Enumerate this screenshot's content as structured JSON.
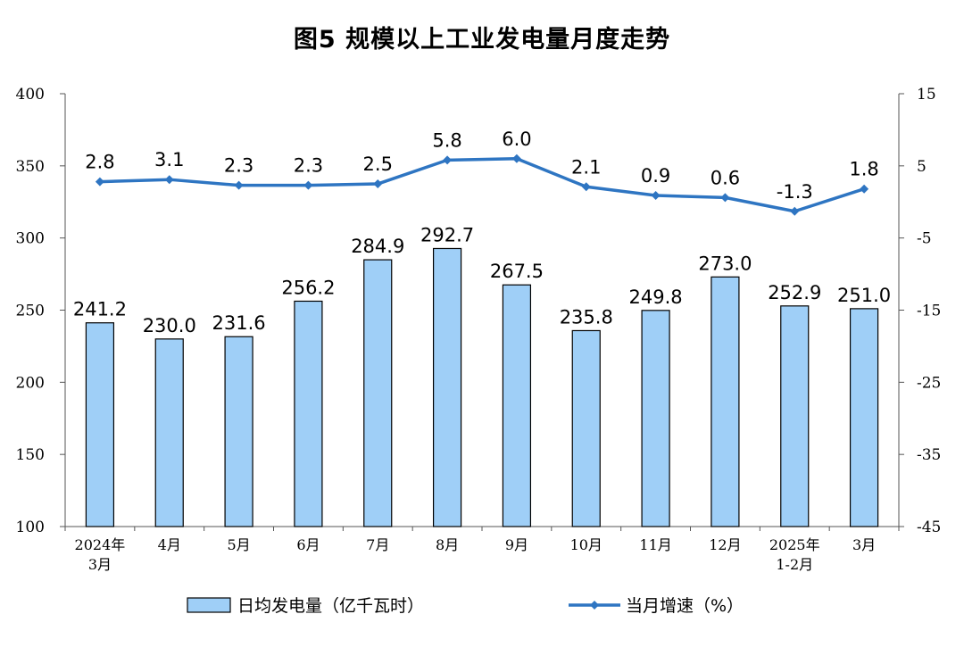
{
  "chart_data": {
    "type": "bar",
    "title": "图5  规模以上工业发电量月度走势",
    "categories": [
      [
        "2024年",
        "3月"
      ],
      [
        "4月"
      ],
      [
        "5月"
      ],
      [
        "6月"
      ],
      [
        "7月"
      ],
      [
        "8月"
      ],
      [
        "9月"
      ],
      [
        "10月"
      ],
      [
        "11月"
      ],
      [
        "12月"
      ],
      [
        "2025年",
        "1-2月"
      ],
      [
        "3月"
      ]
    ],
    "series": [
      {
        "name": "日均发电量（亿千瓦时）",
        "kind": "bar",
        "axis": "left",
        "color": "#9fcff7",
        "values": [
          241.2,
          230.0,
          231.6,
          256.2,
          284.9,
          292.7,
          267.5,
          235.8,
          249.8,
          273.0,
          252.9,
          251.0
        ],
        "labels": [
          "241.2",
          "230.0",
          "231.6",
          "256.2",
          "284.9",
          "292.7",
          "267.5",
          "235.8",
          "249.8",
          "273.0",
          "252.9",
          "251.0"
        ]
      },
      {
        "name": "当月增速（%）",
        "kind": "line",
        "axis": "right",
        "color": "#2e75c2",
        "values": [
          2.8,
          3.1,
          2.3,
          2.3,
          2.5,
          5.8,
          6.0,
          2.1,
          0.9,
          0.6,
          -1.3,
          1.8
        ],
        "labels": [
          "2.8",
          "3.1",
          "2.3",
          "2.3",
          "2.5",
          "5.8",
          "6.0",
          "2.1",
          "0.9",
          "0.6",
          "-1.3",
          "1.8"
        ]
      }
    ],
    "y_left": {
      "ylim": [
        100,
        400
      ],
      "ticks": [
        "100",
        "150",
        "200",
        "250",
        "300",
        "350",
        "400"
      ]
    },
    "y_right": {
      "ylim": [
        -45,
        15
      ],
      "ticks": [
        "-45",
        "-35",
        "-25",
        "-15",
        "-5",
        "5",
        "15"
      ]
    },
    "grid": false,
    "legend_position": "bottom"
  }
}
